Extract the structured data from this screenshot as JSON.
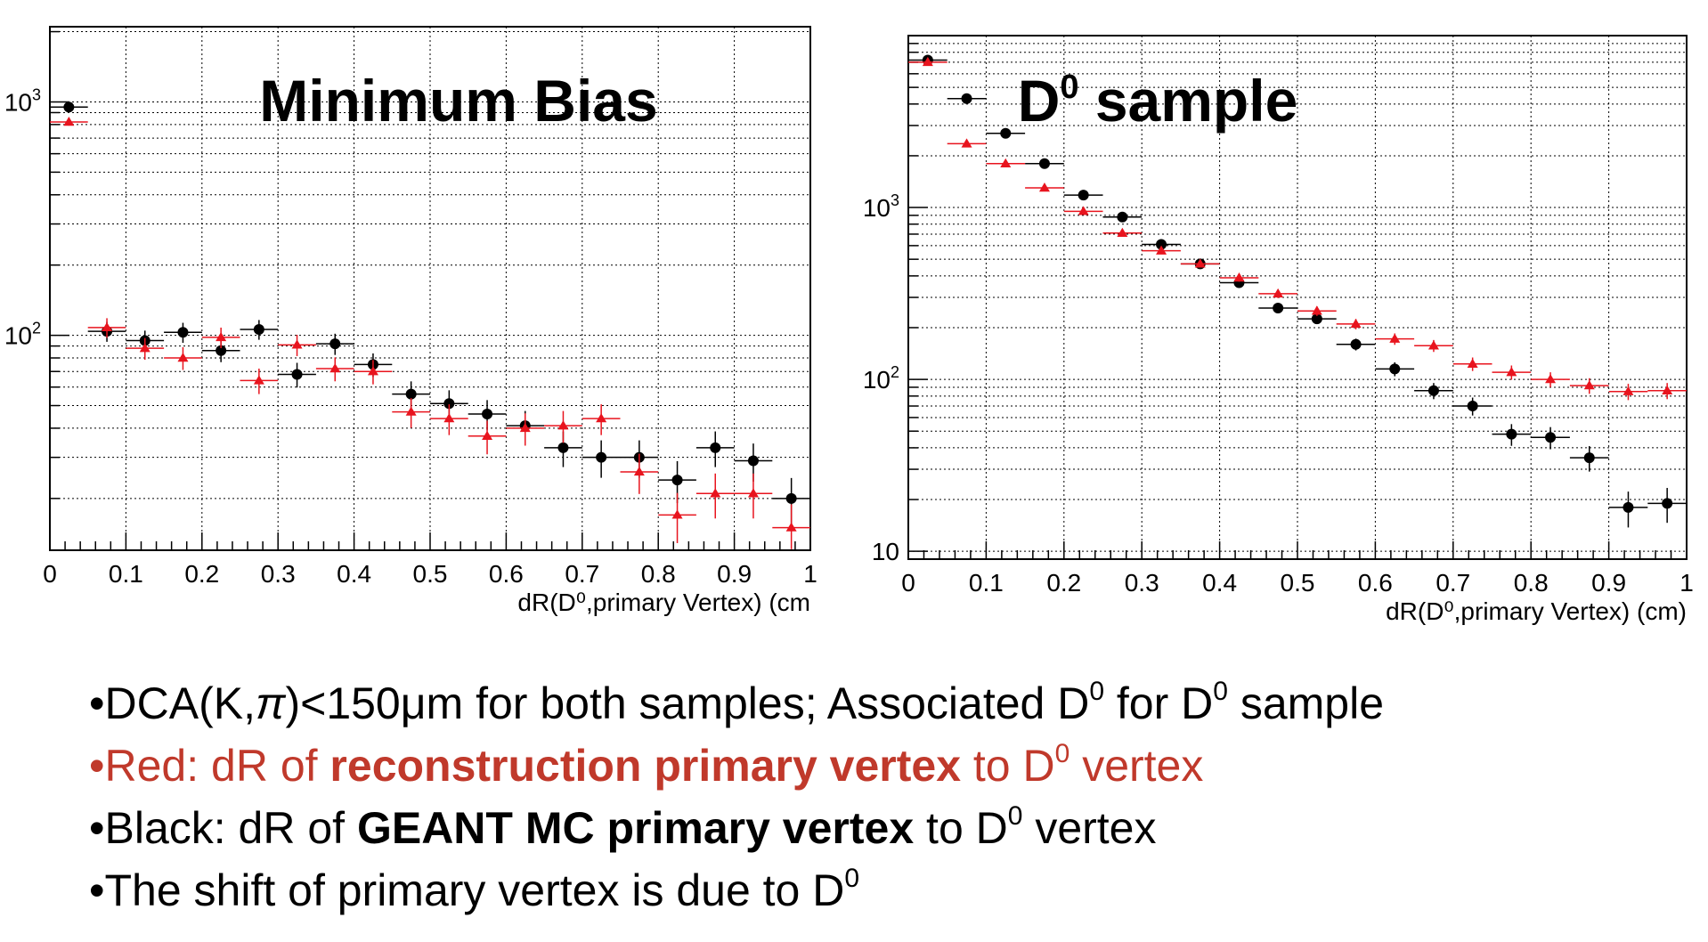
{
  "chart_data": [
    {
      "type": "scatter",
      "title": "Minimum Bias",
      "xlabel": "dR(D⁰,primary Vertex) (cm",
      "ylabel": "",
      "xlim": [
        0,
        1
      ],
      "ylim": [
        12,
        2100
      ],
      "yscale": "log",
      "grid": true,
      "x_ticks": [
        "0",
        "0.1",
        "0.2",
        "0.3",
        "0.4",
        "0.5",
        "0.6",
        "0.7",
        "0.8",
        "0.9",
        "1"
      ],
      "y_ticks": [
        {
          "value": 100,
          "base": "10",
          "exp": "2"
        },
        {
          "value": 1000,
          "base": "10",
          "exp": "3"
        }
      ],
      "series": [
        {
          "color": "#000000",
          "marker": "circle",
          "x": [
            0.025,
            0.075,
            0.125,
            0.175,
            0.225,
            0.275,
            0.325,
            0.375,
            0.425,
            0.475,
            0.525,
            0.575,
            0.625,
            0.675,
            0.725,
            0.775,
            0.825,
            0.875,
            0.925,
            0.975
          ],
          "y": [
            950,
            104,
            95,
            103,
            86,
            106,
            68,
            92,
            75,
            56,
            51,
            46,
            41,
            33,
            30,
            30,
            24,
            33,
            29,
            20
          ]
        },
        {
          "color": "#e8141e",
          "marker": "triangle",
          "x": [
            0.025,
            0.075,
            0.125,
            0.175,
            0.225,
            0.275,
            0.325,
            0.375,
            0.425,
            0.475,
            0.525,
            0.575,
            0.625,
            0.675,
            0.725,
            0.775,
            0.825,
            0.875,
            0.925,
            0.975
          ],
          "y": [
            820,
            108,
            88,
            80,
            98,
            64,
            91,
            72,
            70,
            47,
            44,
            37,
            40,
            41,
            44,
            26,
            17,
            21,
            21,
            15
          ]
        }
      ]
    },
    {
      "type": "scatter",
      "title_base": "D",
      "title_sup": "0",
      "title_rest": " sample",
      "xlabel": "dR(D⁰,primary Vertex) (cm)",
      "ylabel": "",
      "xlim": [
        0,
        1
      ],
      "ylim": [
        9,
        10000
      ],
      "yscale": "log",
      "grid": true,
      "x_ticks": [
        "0",
        "0.1",
        "0.2",
        "0.3",
        "0.4",
        "0.5",
        "0.6",
        "0.7",
        "0.8",
        "0.9",
        "1"
      ],
      "y_ticks": [
        {
          "value": 10,
          "base": "10",
          "exp": ""
        },
        {
          "value": 100,
          "base": "10",
          "exp": "2"
        },
        {
          "value": 1000,
          "base": "10",
          "exp": "3"
        }
      ],
      "series": [
        {
          "color": "#000000",
          "marker": "circle",
          "x": [
            0.025,
            0.075,
            0.125,
            0.175,
            0.225,
            0.275,
            0.325,
            0.375,
            0.425,
            0.475,
            0.525,
            0.575,
            0.625,
            0.675,
            0.725,
            0.775,
            0.825,
            0.875,
            0.925,
            0.975
          ],
          "y": [
            7200,
            4300,
            2700,
            1800,
            1180,
            880,
            610,
            470,
            365,
            260,
            225,
            160,
            115,
            86,
            70,
            48,
            46,
            35,
            18,
            19
          ]
        },
        {
          "color": "#e8141e",
          "marker": "triangle",
          "x": [
            0.025,
            0.075,
            0.125,
            0.175,
            0.225,
            0.275,
            0.325,
            0.375,
            0.425,
            0.475,
            0.525,
            0.575,
            0.625,
            0.675,
            0.725,
            0.775,
            0.825,
            0.875,
            0.925,
            0.975
          ],
          "y": [
            7000,
            2350,
            1800,
            1300,
            950,
            710,
            560,
            470,
            390,
            315,
            250,
            210,
            172,
            157,
            123,
            110,
            100,
            92,
            85,
            86
          ]
        }
      ]
    }
  ],
  "bullets": {
    "b1": {
      "p1": "•DCA(K,",
      "pi": "π",
      "p2": ")<150μm for both samples; Associated D",
      "s1": "0",
      "p3": " for D",
      "s2": "0",
      "p4": " sample"
    },
    "b2": {
      "p1": "•Red: dR of ",
      "bold": "reconstruction primary vertex",
      "p2": " to D",
      "s1": "0",
      "p3": " vertex"
    },
    "b3": {
      "p1": "•Black: dR of ",
      "bold": "GEANT MC primary vertex",
      "p2": " to D",
      "s1": "0",
      "p3": " vertex"
    },
    "b4": {
      "p1": "•The shift of primary vertex is due to D",
      "s1": "0"
    }
  },
  "colors": {
    "red": "#e8141e",
    "text_red": "#c0392b"
  }
}
